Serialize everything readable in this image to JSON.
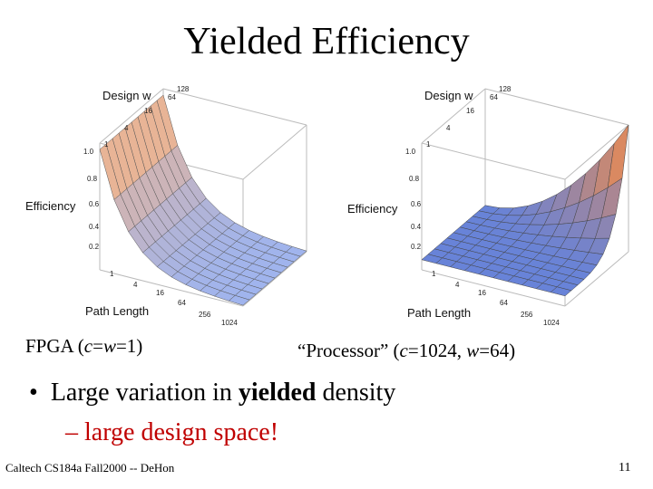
{
  "slide": {
    "title": "Yielded Efficiency",
    "bullet": {
      "pre": "Large variation in ",
      "bold": "yielded",
      "post": " density"
    },
    "sub_bullet": "– large design space!",
    "footer_left": "Caltech CS184a Fall2000 -- DeHon",
    "page_number": "11"
  },
  "plots": [
    {
      "caption_parts": [
        "FPGA (",
        "c",
        "=",
        "w",
        "=1)"
      ],
      "z_label": "Efficiency",
      "w_label": "Design w",
      "x_label": "Path Length",
      "w_ticks": [
        "128",
        "64",
        "16",
        "4",
        "1"
      ],
      "z_ticks": [
        "1.0",
        "0.8",
        "0.6",
        "0.4",
        "0.2"
      ],
      "x_ticks": [
        "1",
        "4",
        "16",
        "64",
        "256",
        "1024"
      ],
      "colors": {
        "high": "#f2b48a",
        "low": "#9fb4ee",
        "grid": "#555555"
      }
    },
    {
      "caption_parts": [
        "“Processor” (",
        "c",
        "=1024, ",
        "w",
        "=64)"
      ],
      "z_label": "Efficiency",
      "w_label": "Design w",
      "x_label": "Path Length",
      "w_ticks": [
        "128",
        "64",
        "16",
        "4",
        "1"
      ],
      "z_ticks": [
        "1.0",
        "0.8",
        "0.6",
        "0.4",
        "0.2"
      ],
      "x_ticks": [
        "1",
        "4",
        "16",
        "64",
        "256",
        "1024"
      ],
      "colors": {
        "high": "#f08a4a",
        "low": "#5a82e6",
        "grid": "#444444"
      }
    }
  ]
}
